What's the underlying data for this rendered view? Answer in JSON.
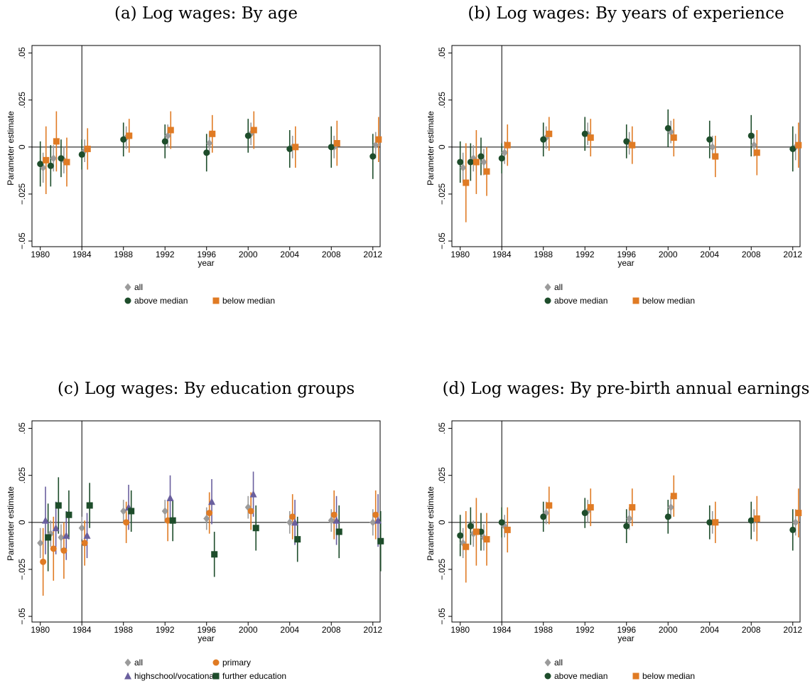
{
  "chart_data": [
    {
      "type": "errorbar",
      "title": "(a) Log wages: By age",
      "y_label": "Parameter estimate",
      "x_label": "year",
      "x": [
        1980,
        1981,
        1982,
        1984,
        1988,
        1992,
        1996,
        2000,
        2004,
        2008,
        2012
      ],
      "xlim": [
        1979.2,
        2012.7
      ],
      "xticks": [
        1980,
        1984,
        1988,
        1992,
        1996,
        2000,
        2004,
        2008,
        2012
      ],
      "ylim": [
        -0.053,
        0.054
      ],
      "yticks": [
        {
          "value": -0.05,
          "label": "−.05"
        },
        {
          "value": -0.025,
          "label": "−.025"
        },
        0,
        {
          "value": 0.025,
          "label": ".025"
        },
        {
          "value": 0.05,
          "label": ".05"
        }
      ],
      "vline": 1984,
      "hline": 0,
      "series": [
        {
          "name": "all",
          "color": "#9b9b9b",
          "marker": "diamond",
          "values": [
            -0.011,
            -0.006,
            -0.007,
            -0.002,
            0.005,
            0.006,
            0.002,
            0.007,
            0,
            0,
            0.001
          ],
          "errors": [
            0.008,
            0.007,
            0.007,
            0.006,
            0.006,
            0.006,
            0.006,
            0.006,
            0.006,
            0.006,
            0.007
          ]
        },
        {
          "name": "above median",
          "color": "#1e4d2b",
          "marker": "circle",
          "values": [
            -0.009,
            -0.01,
            -0.006,
            -0.004,
            0.004,
            0.003,
            -0.003,
            0.006,
            -0.001,
            0,
            -0.005
          ],
          "errors": [
            0.012,
            0.011,
            0.01,
            0.008,
            0.009,
            0.009,
            0.01,
            0.009,
            0.01,
            0.011,
            0.012
          ]
        },
        {
          "name": "below median",
          "color": "#e07b24",
          "marker": "square",
          "values": [
            -0.007,
            0.003,
            -0.008,
            -0.001,
            0.006,
            0.009,
            0.007,
            0.009,
            0,
            0.002,
            0.004
          ],
          "errors": [
            0.018,
            0.016,
            0.013,
            0.011,
            0.009,
            0.01,
            0.01,
            0.01,
            0.011,
            0.012,
            0.012
          ]
        }
      ]
    },
    {
      "type": "errorbar",
      "title": "(b) Log wages: By years of experience",
      "y_label": "Parameter estimate",
      "x_label": "year",
      "x": [
        1980,
        1981,
        1982,
        1984,
        1988,
        1992,
        1996,
        2000,
        2004,
        2008,
        2012
      ],
      "xlim": [
        1979.2,
        2012.7
      ],
      "xticks": [
        1980,
        1984,
        1988,
        1992,
        1996,
        2000,
        2004,
        2008,
        2012
      ],
      "ylim": [
        -0.053,
        0.054
      ],
      "yticks": [
        {
          "value": -0.05,
          "label": "−.05"
        },
        {
          "value": -0.025,
          "label": "−.025"
        },
        0,
        {
          "value": 0.025,
          "label": ".025"
        },
        {
          "value": 0.05,
          "label": ".05"
        }
      ],
      "vline": 1984,
      "hline": 0,
      "series": [
        {
          "name": "all",
          "color": "#9b9b9b",
          "marker": "diamond",
          "values": [
            -0.011,
            -0.006,
            -0.008,
            -0.003,
            0.005,
            0.007,
            0.002,
            0.008,
            0,
            0.001,
            0
          ],
          "errors": [
            0.008,
            0.007,
            0.007,
            0.006,
            0.006,
            0.006,
            0.006,
            0.006,
            0.006,
            0.006,
            0.007
          ]
        },
        {
          "name": "above median",
          "color": "#1e4d2b",
          "marker": "circle",
          "values": [
            -0.008,
            -0.008,
            -0.005,
            -0.006,
            0.004,
            0.007,
            0.003,
            0.01,
            0.004,
            0.006,
            -0.001
          ],
          "errors": [
            0.011,
            0.01,
            0.01,
            0.008,
            0.009,
            0.009,
            0.009,
            0.01,
            0.01,
            0.011,
            0.012
          ]
        },
        {
          "name": "below median",
          "color": "#e07b24",
          "marker": "square",
          "values": [
            -0.019,
            -0.008,
            -0.013,
            0.001,
            0.007,
            0.005,
            0.001,
            0.005,
            -0.005,
            -0.003,
            0.001
          ],
          "errors": [
            0.021,
            0.017,
            0.013,
            0.011,
            0.009,
            0.01,
            0.01,
            0.01,
            0.011,
            0.012,
            0.012
          ]
        }
      ]
    },
    {
      "type": "errorbar",
      "title": "(c) Log wages: By education groups",
      "y_label": "Parameter estimate",
      "x_label": "year",
      "x": [
        1980,
        1981,
        1982,
        1984,
        1988,
        1992,
        1996,
        2000,
        2004,
        2008,
        2012
      ],
      "xlim": [
        1979.2,
        2012.7
      ],
      "xticks": [
        1980,
        1984,
        1988,
        1992,
        1996,
        2000,
        2004,
        2008,
        2012
      ],
      "ylim": [
        -0.053,
        0.054
      ],
      "yticks": [
        {
          "value": -0.05,
          "label": "−.05"
        },
        {
          "value": -0.025,
          "label": "−.025"
        },
        0,
        {
          "value": 0.025,
          "label": ".025"
        },
        {
          "value": 0.05,
          "label": ".05"
        }
      ],
      "vline": 1984,
      "hline": 0,
      "series": [
        {
          "name": "all",
          "color": "#9b9b9b",
          "marker": "diamond",
          "values": [
            -0.011,
            -0.006,
            -0.008,
            -0.003,
            0.006,
            0.006,
            0.002,
            0.008,
            0,
            0.001,
            0
          ],
          "errors": [
            0.008,
            0.007,
            0.007,
            0.006,
            0.006,
            0.006,
            0.006,
            0.006,
            0.006,
            0.006,
            0.007
          ]
        },
        {
          "name": "primary",
          "color": "#e07b24",
          "marker": "circle",
          "values": [
            -0.021,
            -0.014,
            -0.015,
            -0.011,
            0,
            0.001,
            0.005,
            0.006,
            0.003,
            0.004,
            0.004
          ],
          "errors": [
            0.018,
            0.017,
            0.015,
            0.012,
            0.011,
            0.011,
            0.011,
            0.01,
            0.012,
            0.013,
            0.013
          ]
        },
        {
          "name": "highschool/vocational",
          "color": "#6a5f9e",
          "marker": "triangle",
          "values": [
            0.001,
            -0.003,
            -0.007,
            -0.007,
            0.008,
            0.013,
            0.011,
            0.015,
            0,
            0.001,
            0.001
          ],
          "errors": [
            0.018,
            0.014,
            0.013,
            0.012,
            0.012,
            0.012,
            0.012,
            0.012,
            0.012,
            0.013,
            0.014
          ]
        },
        {
          "name": "further education",
          "color": "#1e4d2b",
          "marker": "square",
          "values": [
            -0.008,
            0.009,
            0.004,
            0.009,
            0.006,
            0.001,
            -0.017,
            -0.003,
            -0.009,
            -0.005,
            -0.01
          ],
          "errors": [
            0.018,
            0.015,
            0.013,
            0.012,
            0.011,
            0.011,
            0.012,
            0.012,
            0.012,
            0.014,
            0.016
          ]
        }
      ]
    },
    {
      "type": "errorbar",
      "title": "(d) Log wages: By pre-birth annual earnings",
      "y_label": "Parameter estimate",
      "x_label": "year",
      "x": [
        1980,
        1981,
        1982,
        1984,
        1988,
        1992,
        1996,
        2000,
        2004,
        2008,
        2012
      ],
      "xlim": [
        1979.2,
        2012.7
      ],
      "xticks": [
        1980,
        1984,
        1988,
        1992,
        1996,
        2000,
        2004,
        2008,
        2012
      ],
      "ylim": [
        -0.053,
        0.054
      ],
      "yticks": [
        {
          "value": -0.05,
          "label": "−.05"
        },
        {
          "value": -0.025,
          "label": "−.025"
        },
        0,
        {
          "value": 0.025,
          "label": ".025"
        },
        {
          "value": 0.05,
          "label": ".05"
        }
      ],
      "vline": 1984,
      "hline": 0,
      "series": [
        {
          "name": "all",
          "color": "#9b9b9b",
          "marker": "diamond",
          "values": [
            -0.011,
            -0.006,
            -0.008,
            -0.002,
            0.005,
            0.006,
            0.002,
            0.008,
            0,
            0.001,
            0
          ],
          "errors": [
            0.008,
            0.007,
            0.007,
            0.006,
            0.006,
            0.006,
            0.006,
            0.006,
            0.006,
            0.006,
            0.007
          ]
        },
        {
          "name": "above median",
          "color": "#1e4d2b",
          "marker": "circle",
          "values": [
            -0.007,
            -0.002,
            -0.005,
            0,
            0.003,
            0.005,
            -0.002,
            0.003,
            0,
            0.001,
            -0.004
          ],
          "errors": [
            0.011,
            0.01,
            0.01,
            0.008,
            0.008,
            0.008,
            0.009,
            0.009,
            0.009,
            0.01,
            0.011
          ]
        },
        {
          "name": "below median",
          "color": "#e07b24",
          "marker": "square",
          "values": [
            -0.013,
            -0.005,
            -0.009,
            -0.004,
            0.009,
            0.008,
            0.008,
            0.014,
            0,
            0.002,
            0.005
          ],
          "errors": [
            0.019,
            0.018,
            0.014,
            0.012,
            0.01,
            0.01,
            0.01,
            0.011,
            0.011,
            0.012,
            0.013
          ]
        }
      ]
    }
  ]
}
